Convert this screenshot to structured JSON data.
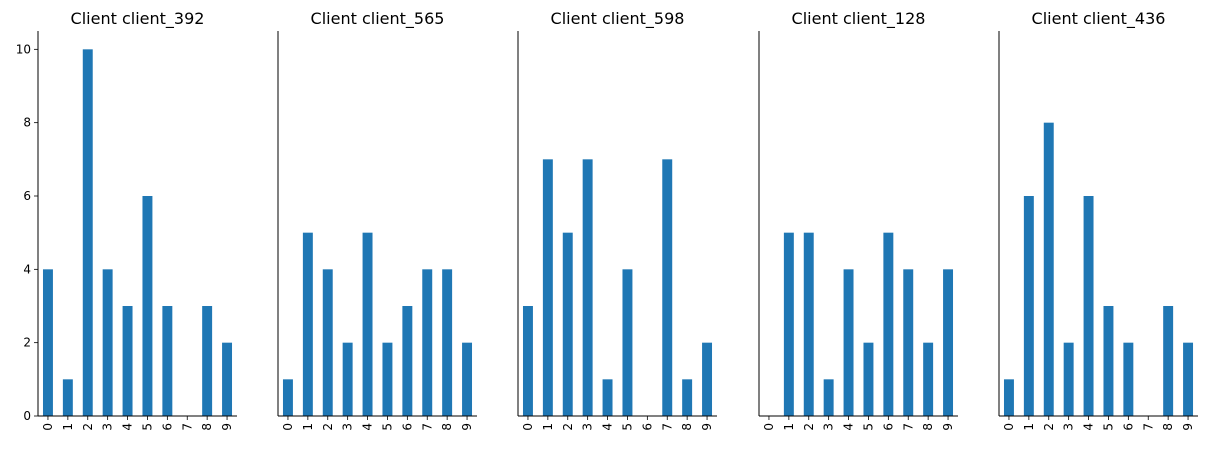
{
  "chart_data": [
    {
      "type": "bar",
      "title": "Client client_392",
      "categories": [
        "0",
        "1",
        "2",
        "3",
        "4",
        "5",
        "6",
        "7",
        "8",
        "9"
      ],
      "values": [
        4,
        1,
        10,
        4,
        3,
        6,
        3,
        0,
        3,
        2
      ],
      "ylim": [
        0,
        10.5
      ],
      "yticks": [
        0,
        2,
        4,
        6,
        8,
        10
      ],
      "show_yaxis": true,
      "bar_color": "#1f77b4",
      "grid": false,
      "xlabel": "",
      "ylabel": ""
    },
    {
      "type": "bar",
      "title": "Client client_565",
      "categories": [
        "0",
        "1",
        "2",
        "3",
        "4",
        "5",
        "6",
        "7",
        "8",
        "9"
      ],
      "values": [
        1,
        5,
        4,
        2,
        5,
        2,
        3,
        4,
        4,
        2
      ],
      "ylim": [
        0,
        10.5
      ],
      "yticks": [
        0,
        2,
        4,
        6,
        8,
        10
      ],
      "show_yaxis": false,
      "bar_color": "#1f77b4",
      "grid": false,
      "xlabel": "",
      "ylabel": ""
    },
    {
      "type": "bar",
      "title": "Client client_598",
      "categories": [
        "0",
        "1",
        "2",
        "3",
        "4",
        "5",
        "6",
        "7",
        "8",
        "9"
      ],
      "values": [
        3,
        7,
        5,
        7,
        1,
        4,
        0,
        7,
        1,
        2
      ],
      "ylim": [
        0,
        10.5
      ],
      "yticks": [
        0,
        2,
        4,
        6,
        8,
        10
      ],
      "show_yaxis": false,
      "bar_color": "#1f77b4",
      "grid": false,
      "xlabel": "",
      "ylabel": ""
    },
    {
      "type": "bar",
      "title": "Client client_128",
      "categories": [
        "0",
        "1",
        "2",
        "3",
        "4",
        "5",
        "6",
        "7",
        "8",
        "9"
      ],
      "values": [
        0,
        5,
        5,
        1,
        4,
        2,
        5,
        4,
        2,
        4
      ],
      "ylim": [
        0,
        10.5
      ],
      "yticks": [
        0,
        2,
        4,
        6,
        8,
        10
      ],
      "show_yaxis": false,
      "bar_color": "#1f77b4",
      "grid": false,
      "xlabel": "",
      "ylabel": ""
    },
    {
      "type": "bar",
      "title": "Client client_436",
      "categories": [
        "0",
        "1",
        "2",
        "3",
        "4",
        "5",
        "6",
        "7",
        "8",
        "9"
      ],
      "values": [
        1,
        6,
        8,
        2,
        6,
        3,
        2,
        0,
        3,
        2
      ],
      "ylim": [
        0,
        10.5
      ],
      "yticks": [
        0,
        2,
        4,
        6,
        8,
        10
      ],
      "show_yaxis": false,
      "bar_color": "#1f77b4",
      "grid": false,
      "xlabel": "",
      "ylabel": ""
    }
  ]
}
